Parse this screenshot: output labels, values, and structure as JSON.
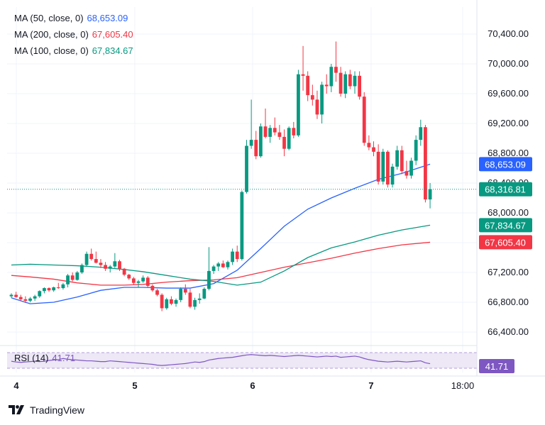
{
  "chart_data": {
    "type": "candlestick",
    "xlabels": [
      "4",
      "5",
      "6",
      "7",
      "18:00"
    ],
    "ylim": [
      66200,
      70700
    ],
    "yticks": [
      66400,
      66800,
      67200,
      67600,
      68000,
      68400,
      68800,
      69200,
      69600,
      70000,
      70400
    ],
    "ytick_labels": [
      "66,400.00",
      "66,800.00",
      "67,200.00",
      "67,600.00",
      "68,000.00",
      "68,400.00",
      "68,800.00",
      "69,200.00",
      "69,600.00",
      "70,000.00",
      "70,400.00"
    ],
    "grid": true,
    "up_color": "#089981",
    "down_color": "#f23645",
    "last_price": 68316.81,
    "last_price_label": "68,316.81",
    "candles": [
      [
        66880,
        66920,
        66860,
        66900
      ],
      [
        66900,
        66940,
        66860,
        66870
      ],
      [
        66870,
        66900,
        66820,
        66840
      ],
      [
        66840,
        66880,
        66790,
        66820
      ],
      [
        66820,
        66870,
        66800,
        66850
      ],
      [
        66850,
        66900,
        66820,
        66880
      ],
      [
        66880,
        66960,
        66860,
        66950
      ],
      [
        66950,
        67000,
        66920,
        66990
      ],
      [
        66990,
        67000,
        66940,
        66960
      ],
      [
        66960,
        67010,
        66940,
        67000
      ],
      [
        67000,
        67060,
        66980,
        66990
      ],
      [
        66990,
        67060,
        66970,
        67040
      ],
      [
        67040,
        67180,
        67000,
        67160
      ],
      [
        67160,
        67200,
        67080,
        67100
      ],
      [
        67100,
        67220,
        67090,
        67200
      ],
      [
        67200,
        67320,
        67180,
        67300
      ],
      [
        67300,
        67480,
        67280,
        67450
      ],
      [
        67450,
        67520,
        67360,
        67380
      ],
      [
        67380,
        67480,
        67320,
        67330
      ],
      [
        67330,
        67380,
        67260,
        67300
      ],
      [
        67300,
        67340,
        67220,
        67250
      ],
      [
        67250,
        67300,
        67200,
        67280
      ],
      [
        67280,
        67460,
        67260,
        67350
      ],
      [
        67350,
        67370,
        67220,
        67250
      ],
      [
        67250,
        67260,
        67150,
        67170
      ],
      [
        67170,
        67180,
        67100,
        67120
      ],
      [
        67120,
        67140,
        67040,
        67060
      ],
      [
        67060,
        67100,
        67000,
        67080
      ],
      [
        67080,
        67160,
        67060,
        67130
      ],
      [
        67130,
        67150,
        67000,
        67020
      ],
      [
        67020,
        67040,
        66940,
        66960
      ],
      [
        66960,
        66980,
        66880,
        66900
      ],
      [
        66900,
        66920,
        66680,
        66720
      ],
      [
        66720,
        66860,
        66700,
        66840
      ],
      [
        66840,
        66880,
        66760,
        66780
      ],
      [
        66780,
        66850,
        66740,
        66830
      ],
      [
        66830,
        67000,
        66800,
        66980
      ],
      [
        66980,
        67040,
        66900,
        66930
      ],
      [
        66930,
        66980,
        66720,
        66740
      ],
      [
        66740,
        66860,
        66700,
        66830
      ],
      [
        66830,
        66920,
        66780,
        66850
      ],
      [
        66850,
        67000,
        66840,
        66980
      ],
      [
        66980,
        67540,
        66960,
        67220
      ],
      [
        67220,
        67300,
        67180,
        67280
      ],
      [
        67280,
        67340,
        67220,
        67320
      ],
      [
        67320,
        67360,
        67260,
        67270
      ],
      [
        67270,
        67360,
        67240,
        67340
      ],
      [
        67340,
        67520,
        67300,
        67480
      ],
      [
        67480,
        67560,
        67340,
        67380
      ],
      [
        67380,
        68300,
        67360,
        68280
      ],
      [
        68280,
        68980,
        68260,
        68900
      ],
      [
        68900,
        69520,
        68860,
        68980
      ],
      [
        68980,
        69100,
        68720,
        68760
      ],
      [
        68760,
        69200,
        68740,
        69160
      ],
      [
        69160,
        69400,
        69000,
        69020
      ],
      [
        69020,
        69180,
        68940,
        69140
      ],
      [
        69140,
        69280,
        69040,
        69080
      ],
      [
        69080,
        69180,
        68980,
        69020
      ],
      [
        69020,
        69120,
        68760,
        68860
      ],
      [
        68860,
        69160,
        68840,
        69140
      ],
      [
        69140,
        69220,
        69000,
        69040
      ],
      [
        69040,
        69920,
        69020,
        69860
      ],
      [
        69860,
        70240,
        69640,
        69840
      ],
      [
        69840,
        69900,
        69500,
        69580
      ],
      [
        69580,
        69720,
        69440,
        69520
      ],
      [
        69520,
        69640,
        69260,
        69320
      ],
      [
        69320,
        69760,
        69200,
        69720
      ],
      [
        69720,
        69860,
        69600,
        69700
      ],
      [
        69700,
        70000,
        69620,
        69960
      ],
      [
        69960,
        70300,
        69760,
        69880
      ],
      [
        69880,
        69960,
        69560,
        69600
      ],
      [
        69600,
        69900,
        69540,
        69860
      ],
      [
        69860,
        69920,
        69660,
        69700
      ],
      [
        69700,
        69900,
        69600,
        69840
      ],
      [
        69840,
        69900,
        69520,
        69560
      ],
      [
        69560,
        69620,
        68900,
        68940
      ],
      [
        68940,
        69040,
        68840,
        68880
      ],
      [
        68880,
        68960,
        68760,
        68820
      ],
      [
        68820,
        68920,
        68380,
        68420
      ],
      [
        68420,
        68860,
        68380,
        68820
      ],
      [
        68820,
        68840,
        68340,
        68380
      ],
      [
        68380,
        68660,
        68340,
        68620
      ],
      [
        68620,
        68900,
        68580,
        68840
      ],
      [
        68840,
        68900,
        68520,
        68560
      ],
      [
        68560,
        68700,
        68460,
        68500
      ],
      [
        68500,
        68740,
        68460,
        68700
      ],
      [
        68700,
        69040,
        68640,
        68980
      ],
      [
        68980,
        69250,
        68900,
        69150
      ],
      [
        69150,
        69180,
        68140,
        68180
      ],
      [
        68180,
        68400,
        68060,
        68316.81
      ]
    ],
    "series": [
      {
        "name": "MA (50, close, 0)",
        "value_label": "68,653.09",
        "color": "#2962ff",
        "x": [
          0,
          4,
          9,
          14,
          19,
          24,
          28,
          33,
          38,
          43,
          48,
          53,
          58,
          63,
          68,
          73,
          78,
          83,
          89
        ],
        "values": [
          66860,
          66780,
          66800,
          66870,
          66960,
          67000,
          67000,
          66990,
          66990,
          67050,
          67230,
          67520,
          67820,
          68050,
          68200,
          68330,
          68450,
          68530,
          68653.09
        ]
      },
      {
        "name": "MA (200, close, 0)",
        "value_label": "67,605.40",
        "color": "#f23645",
        "x": [
          0,
          4,
          9,
          14,
          19,
          24,
          28,
          33,
          38,
          43,
          48,
          53,
          58,
          63,
          68,
          73,
          78,
          83,
          89
        ],
        "values": [
          67160,
          67140,
          67110,
          67060,
          67030,
          67030,
          67040,
          67070,
          67090,
          67100,
          67130,
          67200,
          67270,
          67330,
          67390,
          67460,
          67520,
          67570,
          67605.4
        ]
      },
      {
        "name": "MA (100, close, 0)",
        "value_label": "67,834.67",
        "color": "#089981",
        "x": [
          0,
          4,
          9,
          14,
          19,
          24,
          28,
          33,
          38,
          43,
          48,
          53,
          58,
          63,
          68,
          73,
          78,
          83,
          89
        ],
        "values": [
          67300,
          67310,
          67300,
          67290,
          67270,
          67240,
          67210,
          67160,
          67110,
          67080,
          67030,
          67070,
          67220,
          67400,
          67530,
          67610,
          67700,
          67770,
          67834.67
        ]
      }
    ],
    "rsi": {
      "label": "RSI (14)",
      "value_label": "41.71",
      "color": "#7e57c2",
      "band_color": "#ede7f6",
      "values": [
        48,
        46,
        45,
        46,
        47,
        48,
        47,
        48,
        50,
        51,
        52,
        55,
        53,
        52,
        51,
        50,
        49,
        49,
        48,
        47,
        47,
        49,
        48,
        47,
        46,
        45,
        44,
        43,
        42,
        41,
        40,
        38,
        37,
        38,
        39,
        40,
        41,
        42,
        44,
        46,
        45,
        47,
        51,
        53,
        55,
        56,
        57,
        58,
        60,
        62,
        64,
        65,
        64,
        63,
        62,
        63,
        62,
        61,
        60,
        61,
        62,
        63,
        62,
        61,
        60,
        59,
        60,
        61,
        60,
        61,
        58,
        59,
        60,
        61,
        59,
        55,
        52,
        50,
        48,
        47,
        46,
        47,
        48,
        47,
        46,
        47,
        48,
        49,
        44,
        41.71
      ]
    }
  },
  "legend": [
    {
      "label": "MA (50, close, 0)",
      "value": "68,653.09",
      "color": "#2962ff"
    },
    {
      "label": "MA (200, close, 0)",
      "value": "67,605.40",
      "color": "#f23645"
    },
    {
      "label": "MA (100, close, 0)",
      "value": "67,834.67",
      "color": "#089981"
    }
  ],
  "rsi_legend": {
    "label": "RSI (14)",
    "value": "41.71",
    "color": "#7e57c2"
  },
  "footer": {
    "brand": "TradingView"
  }
}
